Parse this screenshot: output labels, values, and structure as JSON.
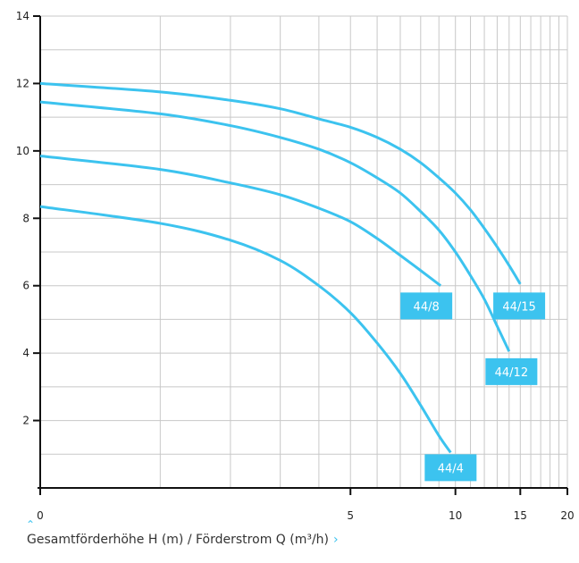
{
  "chart_data": {
    "type": "line",
    "title": "",
    "xlabel": "Gesamtförderhöhe H (m) / Förderstrom Q (m³/h)",
    "ylabel": "",
    "x_axis": {
      "scale": "log",
      "range": [
        1,
        21
      ],
      "ticks": [
        1,
        6,
        11,
        16,
        21
      ],
      "tick_labels": [
        "0",
        "5",
        "10",
        "15",
        "20"
      ],
      "minor_grid": [
        2,
        3,
        4,
        5,
        7,
        8,
        9,
        10,
        12,
        13,
        14,
        15,
        17,
        18,
        19,
        20
      ]
    },
    "y_axis": {
      "scale": "linear",
      "range": [
        0,
        14
      ],
      "ticks": [
        2,
        4,
        6,
        8,
        10,
        12,
        14
      ],
      "tick_labels": [
        "2",
        "4",
        "6",
        "8",
        "10",
        "12",
        "14"
      ],
      "minor_grid": [
        1,
        3,
        5,
        7,
        9,
        11,
        13
      ]
    },
    "grid": true,
    "legend": "none",
    "series_color": "#3cc3ef",
    "series": [
      {
        "name": "44/4",
        "x": [
          1.0,
          2.0,
          3.0,
          4.0,
          5.0,
          6.0,
          7.0,
          8.0,
          9.0,
          10.0,
          10.7
        ],
        "y": [
          8.35,
          7.85,
          7.35,
          6.75,
          6.0,
          5.2,
          4.3,
          3.4,
          2.45,
          1.55,
          1.05
        ]
      },
      {
        "name": "44/8",
        "x": [
          1.0,
          2.0,
          3.0,
          4.0,
          5.0,
          6.0,
          7.0,
          8.0,
          9.0,
          10.1
        ],
        "y": [
          9.85,
          9.45,
          9.05,
          8.7,
          8.3,
          7.9,
          7.4,
          6.9,
          6.45,
          6.0
        ]
      },
      {
        "name": "44/12",
        "x": [
          1.0,
          2.0,
          3.0,
          4.0,
          5.0,
          6.0,
          7.0,
          8.0,
          9.0,
          10.0,
          11.0,
          12.0,
          13.0,
          14.0,
          15.0
        ],
        "y": [
          11.45,
          11.1,
          10.75,
          10.4,
          10.05,
          9.65,
          9.2,
          8.75,
          8.2,
          7.65,
          7.0,
          6.3,
          5.6,
          4.8,
          4.05
        ]
      },
      {
        "name": "44/15",
        "x": [
          1.0,
          2.0,
          3.0,
          4.0,
          5.0,
          6.0,
          7.0,
          8.0,
          9.0,
          10.0,
          11.0,
          12.0,
          13.0,
          14.0,
          15.0,
          16.0
        ],
        "y": [
          12.0,
          11.75,
          11.5,
          11.25,
          10.95,
          10.7,
          10.4,
          10.05,
          9.65,
          9.2,
          8.75,
          8.25,
          7.7,
          7.15,
          6.6,
          6.05
        ]
      }
    ],
    "curve_tags": [
      {
        "label": "44/4",
        "x": 10.7,
        "y": 0.6
      },
      {
        "label": "44/8",
        "x": 9.3,
        "y": 5.4
      },
      {
        "label": "44/15",
        "x": 15.9,
        "y": 5.4
      },
      {
        "label": "44/12",
        "x": 15.2,
        "y": 3.45
      }
    ]
  }
}
